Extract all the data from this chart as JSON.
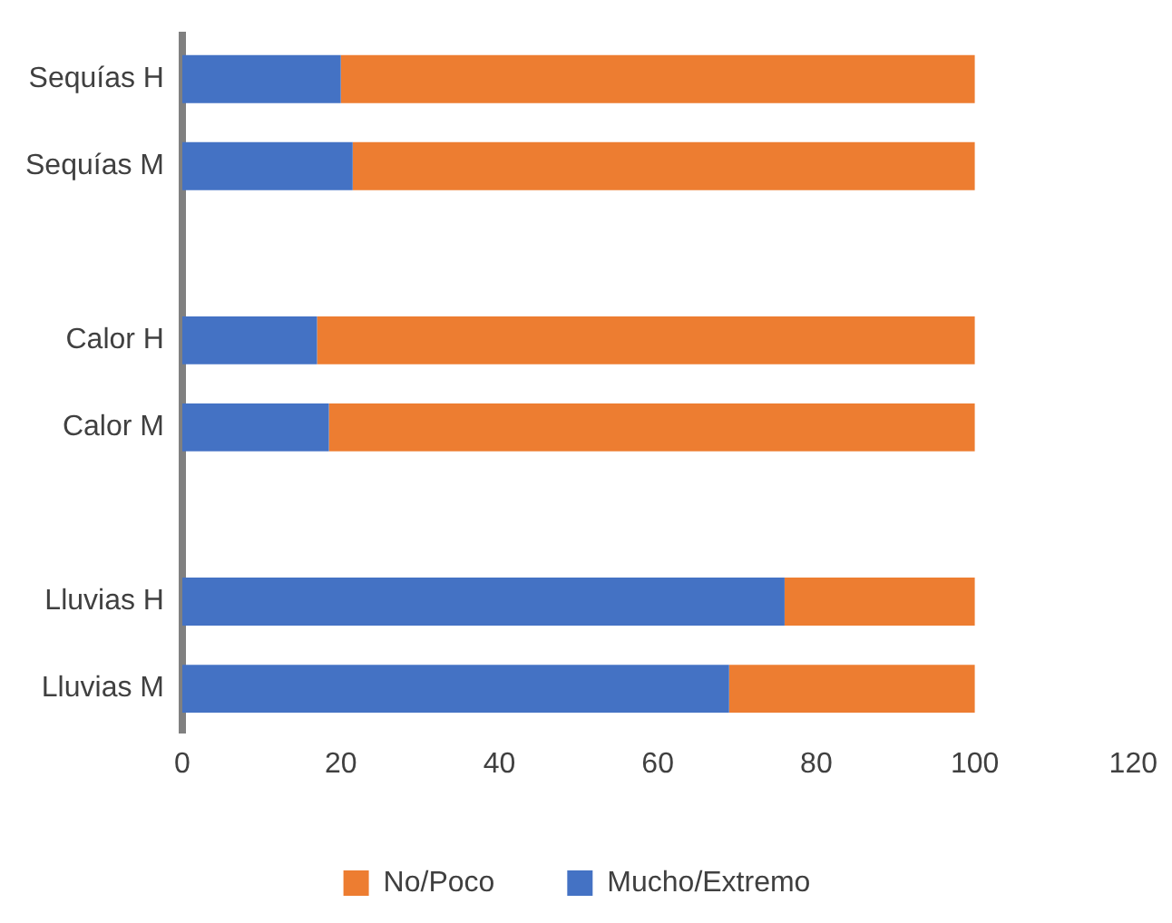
{
  "chart_data": {
    "type": "bar",
    "orientation": "horizontal",
    "stacked": true,
    "legend": "bottom",
    "categories": [
      "Sequías H",
      "Sequías M",
      null,
      "Calor H",
      "Calor M",
      null,
      "Lluvias H",
      "Lluvias M"
    ],
    "series": [
      {
        "name": "Mucho/Extremo",
        "color": "#4472c4",
        "values": [
          20,
          21.5,
          null,
          17,
          18.5,
          null,
          76,
          69
        ]
      },
      {
        "name": "No/Poco",
        "color": "#ed7d31",
        "values": [
          80,
          78.5,
          null,
          83,
          81.5,
          null,
          24,
          31
        ]
      }
    ],
    "xlim": [
      0,
      120
    ],
    "xticks": [
      0,
      20,
      40,
      60,
      80,
      100,
      120
    ],
    "grid": false
  }
}
